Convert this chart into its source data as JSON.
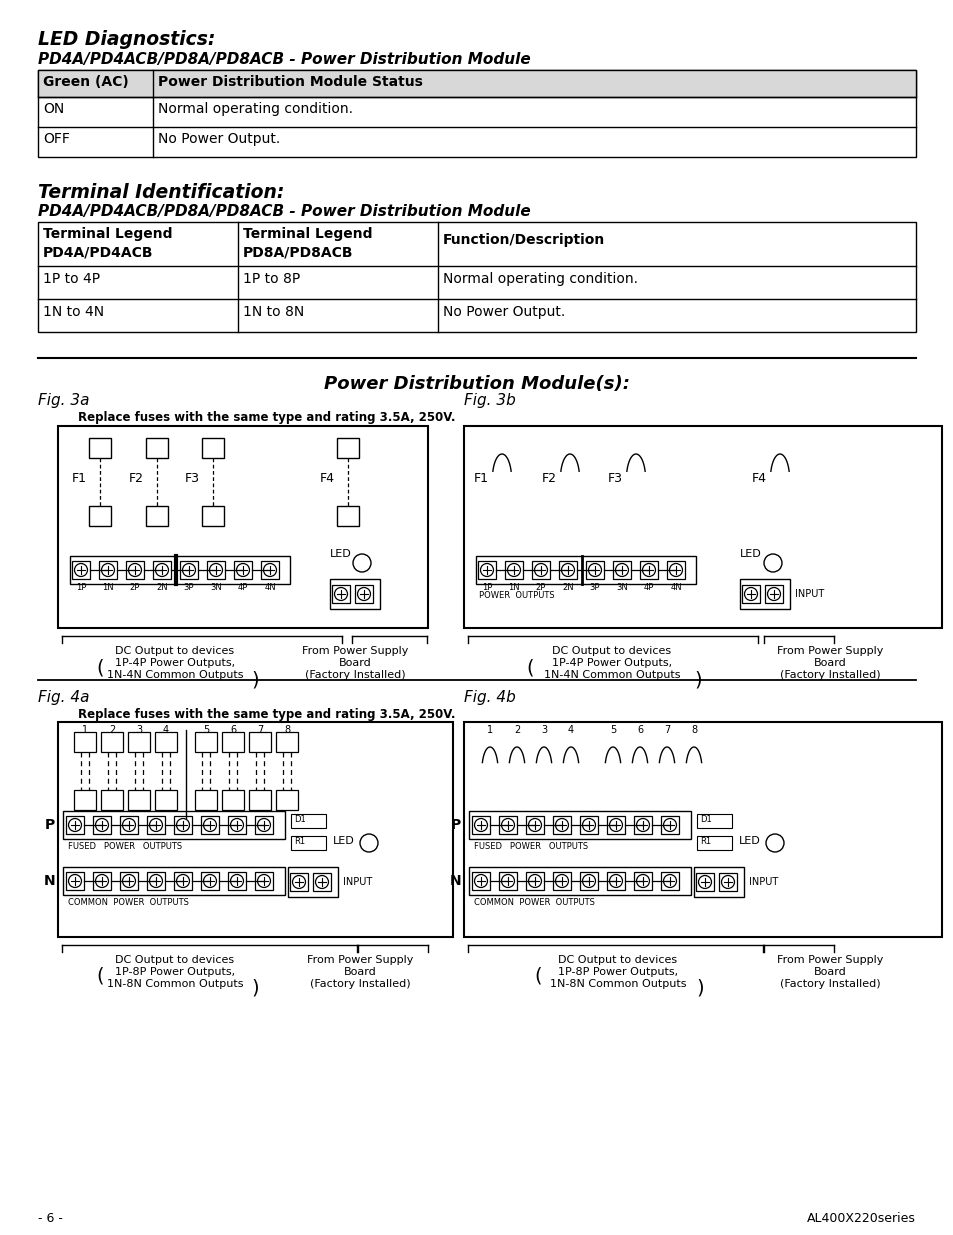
{
  "bg": "#ffffff",
  "title_led": "LED Diagnostics:",
  "subtitle_led": "PD4A/PD4ACB/PD8A/PD8ACB - Power Distribution Module",
  "t1_h1": "Green (AC)",
  "t1_h2": "Power Distribution Module Status",
  "t1_r1c1": "ON",
  "t1_r1c2": "Normal operating condition.",
  "t1_r2c1": "OFF",
  "t1_r2c2": "No Power Output.",
  "title_term": "Terminal Identification:",
  "subtitle_term": "PD4A/PD4ACB/PD8A/PD8ACB - Power Distribution Module",
  "t2_h1": "Terminal Legend\nPD4A/PD4ACB",
  "t2_h2": "Terminal Legend\nPD8A/PD8ACB",
  "t2_h3": "Function/Description",
  "t2_r1c1": "1P to 4P",
  "t2_r1c2": "1P to 8P",
  "t2_r1c3": "Normal operating condition.",
  "t2_r2c1": "1N to 4N",
  "t2_r2c2": "1N to 8N",
  "t2_r2c3": "No Power Output.",
  "section_title": "Power Distribution Module(s):",
  "fig3a": "Fig. 3a",
  "fig3b": "Fig. 3b",
  "fig4a": "Fig. 4a",
  "fig4b": "Fig. 4b",
  "fuse_note": "Replace fuses with the same type and rating 3.5A, 250V.",
  "led_text": "LED",
  "input_text": "INPUT",
  "p_text": "P",
  "n_text": "N",
  "fused_text": "FUSED",
  "power_text": "POWER",
  "outputs_text": "OUTPUTS",
  "common_text": "COMMON",
  "power_outputs_text": "POWER  OUTPUTS",
  "dc_3a_1": "DC Output to devices",
  "dc_3a_2": "1P-4P Power Outputs,",
  "dc_3a_3": "1N-4N Common Outputs",
  "fps_1": "From Power Supply",
  "fps_2": "Board",
  "fps_3": "(Factory Installed)",
  "dc_4a_1": "DC Output to devices",
  "dc_4a_2": "1P-8P Power Outputs,",
  "dc_4a_3": "1N-8N Common Outputs",
  "footer_l": "- 6 -",
  "footer_r": "AL400X220series",
  "d1_text": "D1",
  "r1_text": "R1"
}
